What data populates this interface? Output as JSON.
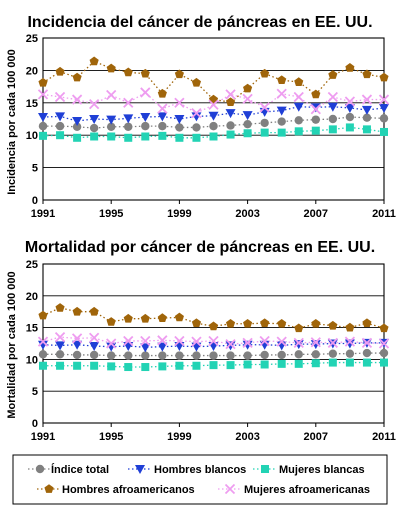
{
  "chart_data": [
    {
      "type": "line",
      "title": "Incidencia del cáncer de páncreas en EE. UU.",
      "ylabel": "Incidencia por cada 100 000",
      "xlabel": "",
      "xlim": [
        1991,
        2011
      ],
      "ylim": [
        0,
        25
      ],
      "yticks": [
        0,
        5,
        10,
        15,
        20,
        25
      ],
      "xticks": [
        1991,
        1995,
        1999,
        2003,
        2007,
        2011
      ],
      "grid": "horizontal",
      "x": [
        1991,
        1992,
        1993,
        1994,
        1995,
        1996,
        1997,
        1998,
        1999,
        2000,
        2001,
        2002,
        2003,
        2004,
        2005,
        2006,
        2007,
        2008,
        2009,
        2010,
        2011
      ],
      "series": [
        {
          "name": "Índice total",
          "values": [
            11.4,
            11.4,
            11.3,
            11.1,
            11.3,
            11.3,
            11.4,
            11.4,
            11.2,
            11.2,
            11.4,
            11.5,
            11.7,
            11.9,
            12.1,
            12.3,
            12.4,
            12.5,
            12.8,
            12.7,
            12.6
          ]
        },
        {
          "name": "Hombres blancos",
          "values": [
            12.8,
            12.9,
            12.2,
            12.5,
            12.4,
            12.6,
            12.8,
            12.9,
            12.5,
            12.9,
            13.0,
            13.4,
            13.1,
            13.6,
            13.8,
            14.4,
            14.3,
            14.4,
            14.2,
            13.9,
            14.2
          ]
        },
        {
          "name": "Mujeres blancas",
          "values": [
            9.9,
            10.0,
            9.6,
            9.8,
            9.8,
            9.6,
            9.8,
            9.9,
            9.6,
            9.6,
            9.8,
            10.1,
            10.3,
            10.4,
            10.4,
            10.6,
            10.7,
            10.9,
            11.2,
            10.9,
            10.5
          ]
        },
        {
          "name": "Hombres afroamericanos",
          "values": [
            18.1,
            19.8,
            18.9,
            21.4,
            20.3,
            19.7,
            19.5,
            16.4,
            19.4,
            18.1,
            15.5,
            15.1,
            17.2,
            19.5,
            18.5,
            18.2,
            16.3,
            19.3,
            20.4,
            19.4,
            18.9
          ]
        },
        {
          "name": "Mujeres afroamericanas",
          "values": [
            16.3,
            15.9,
            15.5,
            14.8,
            16.2,
            15.0,
            16.6,
            14.1,
            15.0,
            13.4,
            14.7,
            16.3,
            15.6,
            14.3,
            16.4,
            15.9,
            14.0,
            15.9,
            15.2,
            15.5,
            15.5
          ]
        }
      ]
    },
    {
      "type": "line",
      "title": "Mortalidad por cáncer de páncreas en EE. UU.",
      "ylabel": "Mortalidad por cada 100 000",
      "xlabel": "",
      "xlim": [
        1991,
        2011
      ],
      "ylim": [
        0,
        25
      ],
      "yticks": [
        0,
        5,
        10,
        15,
        20,
        25
      ],
      "xticks": [
        1991,
        1995,
        1999,
        2003,
        2007,
        2011
      ],
      "grid": "horizontal",
      "x": [
        1991,
        1992,
        1993,
        1994,
        1995,
        1996,
        1997,
        1998,
        1999,
        2000,
        2001,
        2002,
        2003,
        2004,
        2005,
        2006,
        2007,
        2008,
        2009,
        2010,
        2011
      ],
      "series": [
        {
          "name": "Índice total",
          "values": [
            10.8,
            10.8,
            10.7,
            10.7,
            10.6,
            10.6,
            10.6,
            10.6,
            10.6,
            10.6,
            10.6,
            10.6,
            10.6,
            10.7,
            10.7,
            10.8,
            10.8,
            10.9,
            10.9,
            11.0,
            11.0
          ]
        },
        {
          "name": "Hombres blancos",
          "values": [
            12.3,
            12.2,
            12.3,
            12.1,
            12.0,
            12.1,
            11.9,
            12.0,
            12.1,
            12.0,
            12.1,
            12.2,
            12.3,
            12.3,
            12.2,
            12.4,
            12.4,
            12.5,
            12.5,
            12.6,
            12.6
          ]
        },
        {
          "name": "Mujeres blancas",
          "values": [
            9.0,
            9.0,
            9.0,
            9.0,
            8.9,
            8.8,
            8.8,
            8.9,
            9.0,
            9.0,
            9.1,
            9.1,
            9.2,
            9.2,
            9.3,
            9.3,
            9.4,
            9.5,
            9.5,
            9.5,
            9.5
          ]
        },
        {
          "name": "Hombres afroamericanos",
          "values": [
            16.9,
            18.1,
            17.5,
            17.5,
            15.9,
            16.4,
            16.4,
            16.5,
            16.6,
            15.7,
            15.2,
            15.6,
            15.6,
            15.7,
            15.6,
            14.9,
            15.6,
            15.3,
            15.0,
            15.7,
            14.9
          ]
        },
        {
          "name": "Mujeres afroamericanas",
          "values": [
            12.8,
            13.5,
            13.3,
            13.4,
            12.5,
            12.9,
            12.9,
            13.0,
            12.9,
            12.8,
            12.9,
            12.4,
            12.6,
            12.9,
            12.8,
            12.6,
            12.7,
            12.6,
            12.8,
            12.6,
            12.5
          ]
        }
      ]
    }
  ],
  "legend": {
    "items": [
      {
        "label": "Índice total",
        "marker": "circle",
        "color": "#808080"
      },
      {
        "label": "Hombres blancos",
        "marker": "triangle-down",
        "color": "#1f3fd6"
      },
      {
        "label": "Mujeres blancas",
        "marker": "square",
        "color": "#22d3b4"
      },
      {
        "label": "Hombres afroamericanos",
        "marker": "pentagon",
        "color": "#a0650a"
      },
      {
        "label": "Mujeres afroamericanas",
        "marker": "x",
        "color": "#ee9cf0"
      }
    ]
  },
  "style": {
    "colors": {
      "Índice total": "#808080",
      "Hombres blancos": "#1f3fd6",
      "Mujeres blancas": "#22d3b4",
      "Hombres afroamericanos": "#a0650a",
      "Mujeres afroamericanas": "#ee9cf0"
    },
    "markers": {
      "Índice total": "circle",
      "Hombres blancos": "triangle-down",
      "Mujeres blancas": "square",
      "Hombres afroamericanos": "pentagon",
      "Mujeres afroamericanas": "x"
    },
    "line_style": "dotted"
  }
}
